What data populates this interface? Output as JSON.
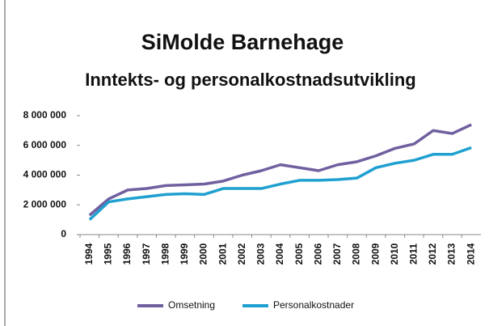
{
  "chart_data": {
    "type": "line",
    "title": "SiMolde Barnehage",
    "subtitle": "Inntekts- og personalkostnadsutvikling",
    "categories": [
      "1994",
      "1995",
      "1996",
      "1997",
      "1998",
      "1999",
      "2000",
      "2001",
      "2002",
      "2003",
      "2004",
      "2005",
      "2006",
      "2007",
      "2008",
      "2009",
      "2010",
      "2011",
      "2012",
      "2013",
      "2014"
    ],
    "series": [
      {
        "name": "Omsetning",
        "color": "#7060a0",
        "values": [
          1300000,
          2400000,
          3000000,
          3100000,
          3300000,
          3350000,
          3400000,
          3600000,
          4000000,
          4300000,
          4700000,
          4500000,
          4300000,
          4700000,
          4900000,
          5300000,
          5800000,
          6100000,
          7000000,
          6800000,
          7400000
        ]
      },
      {
        "name": "Personalkostnader",
        "color": "#1fa0d0",
        "values": [
          1000000,
          2200000,
          2400000,
          2550000,
          2700000,
          2750000,
          2700000,
          3100000,
          3100000,
          3100000,
          3400000,
          3650000,
          3650000,
          3700000,
          3800000,
          4500000,
          4800000,
          5000000,
          5400000,
          5400000,
          5850000
        ]
      }
    ],
    "ylim": [
      0,
      8000000
    ],
    "yticks": [
      0,
      {
        "value": 2000000,
        "label": "2 000 000"
      },
      {
        "value": 4000000,
        "label": "4 000 000"
      },
      {
        "value": 6000000,
        "label": "6 000 000"
      },
      {
        "value": 8000000,
        "label": "8 000 000"
      }
    ],
    "legend": "bottom"
  }
}
